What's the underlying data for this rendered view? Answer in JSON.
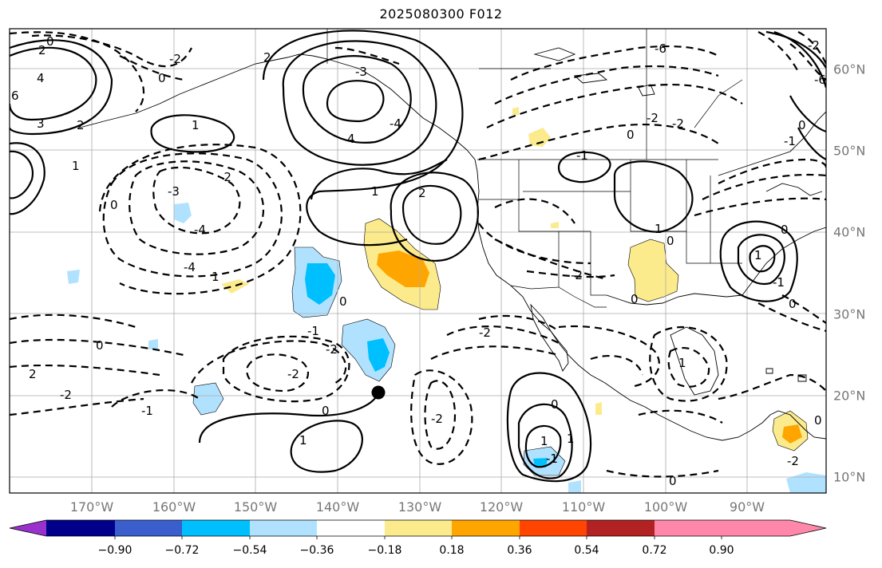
{
  "title": "2025080300 F012",
  "map": {
    "longitude_labels": [
      "170°W",
      "160°W",
      "150°W",
      "140°W",
      "130°W",
      "120°W",
      "110°W",
      "100°W",
      "90°W"
    ],
    "latitude_labels": [
      "60°N",
      "50°N",
      "40°N",
      "30°N",
      "20°N",
      "10°N"
    ],
    "marker": "black-dot-at-20N-134.5W",
    "contour_labels": [
      "0",
      "2",
      "4",
      "6",
      "3",
      "2",
      "1",
      "1",
      "0",
      "-2",
      "-3",
      "-4",
      "-2",
      "1",
      "0",
      "4",
      "2",
      "1",
      "2",
      "-3",
      "-4",
      "-4",
      "0",
      "-2",
      "-2",
      "-1",
      "1",
      "-1",
      "0",
      "2",
      "-2",
      "0",
      "-2",
      "-2",
      "-2",
      "0",
      "-2",
      "1",
      "-1",
      "0",
      "0",
      "1",
      "1",
      "-1",
      "-6",
      "0",
      "-2",
      "0",
      "-1",
      "0",
      "-2",
      "0",
      "0",
      "-2",
      "-6",
      "-1",
      "1",
      "1",
      "0"
    ]
  },
  "colorbar": {
    "colors": [
      "#9932cc",
      "#00008b",
      "#3a5fcd",
      "#00bfff",
      "#b0e2ff",
      "#ffffff",
      "#fceb8c",
      "#ffa500",
      "#ff4500",
      "#b22222",
      "#ff88aa"
    ],
    "tick_labels": [
      "−0.90",
      "−0.72",
      "−0.54",
      "−0.36",
      "−0.18",
      "0.18",
      "0.36",
      "0.54",
      "0.72",
      "0.90"
    ]
  }
}
